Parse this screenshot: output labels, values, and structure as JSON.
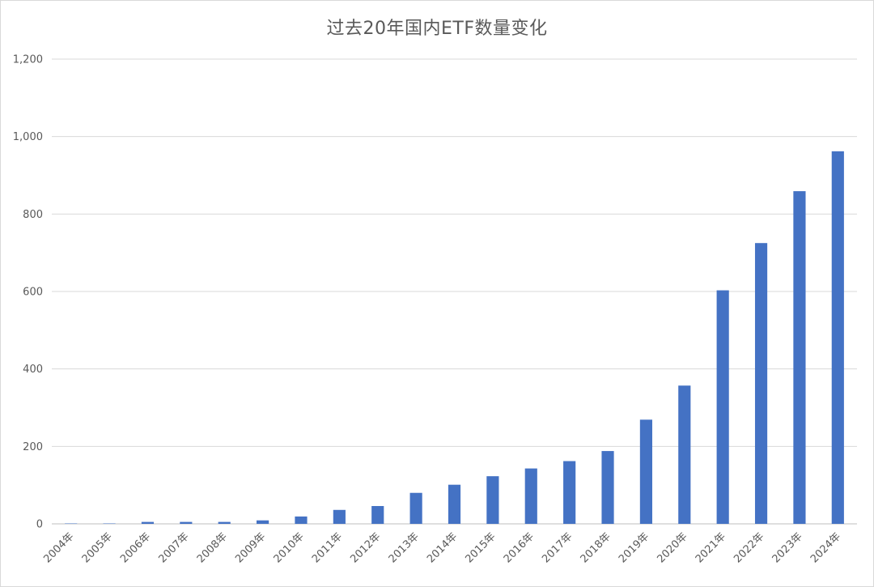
{
  "chart_data": {
    "type": "bar",
    "title": "过去20年国内ETF数量变化",
    "xlabel": "",
    "ylabel": "",
    "categories": [
      "2004年",
      "2005年",
      "2006年",
      "2007年",
      "2008年",
      "2009年",
      "2010年",
      "2011年",
      "2012年",
      "2013年",
      "2014年",
      "2015年",
      "2016年",
      "2017年",
      "2018年",
      "2019年",
      "2020年",
      "2021年",
      "2022年",
      "2023年",
      "2024年"
    ],
    "values": [
      1,
      1,
      5,
      5,
      5,
      9,
      19,
      36,
      46,
      80,
      101,
      123,
      143,
      162,
      188,
      269,
      357,
      603,
      725,
      859,
      962
    ],
    "ylim": [
      0,
      1200
    ],
    "yticks": [
      "0",
      "200",
      "400",
      "600",
      "800",
      "1,000",
      "1,200"
    ],
    "ytick_values": [
      0,
      200,
      400,
      600,
      800,
      1000,
      1200
    ],
    "grid": true,
    "legend": "none",
    "bar_color": "#4472C4"
  }
}
